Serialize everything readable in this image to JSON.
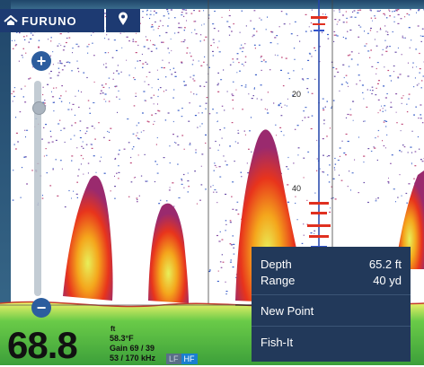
{
  "header": {
    "brand": "FURUNO",
    "home_icon": "home-icon",
    "pin_icon": "location-pin-icon"
  },
  "scale": {
    "labels": [
      "20",
      "40"
    ]
  },
  "zoom": {
    "plus": "+",
    "minus": "−",
    "level": 0.12
  },
  "readout": {
    "depth_value": "68.8",
    "depth_unit": "ft",
    "temperature": "58.3°F",
    "gain": "Gain 69 / 39",
    "frequency": "53 / 170 kHz",
    "lf_label": "LF",
    "hf_label": "HF"
  },
  "popup": {
    "depth_label": "Depth",
    "depth_value": "65.2 ft",
    "range_label": "Range",
    "range_value": "40 yd",
    "new_point": "New Point",
    "fish_it": "Fish-It"
  },
  "colors": {
    "header_bg": "#1d3a72",
    "popup_bg": "#22395a",
    "hf_accent": "#1a7fd0"
  }
}
